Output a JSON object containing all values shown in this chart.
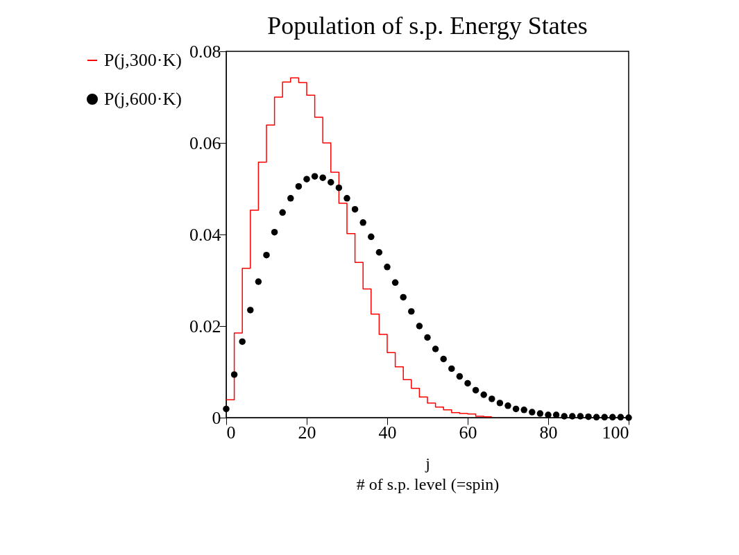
{
  "chart_data": {
    "type": "step",
    "title": "Population of s.p. Energy States",
    "xlabel": "j\n# of s.p. level (=spin)",
    "xlim": [
      0,
      100
    ],
    "xticks": [
      0,
      20,
      40,
      60,
      80,
      100
    ],
    "ylim": [
      0,
      0.08
    ],
    "yticks": [
      0,
      0.02,
      0.04,
      0.06,
      0.08
    ],
    "grid": false,
    "legend": "left",
    "series": [
      {
        "name": "P(j,300·K)",
        "color": "#ff0000",
        "x": [
          0,
          2,
          4,
          6,
          8,
          10,
          12,
          14,
          16,
          18,
          20,
          22,
          24,
          26,
          28,
          30,
          32,
          34,
          36,
          38,
          40,
          42,
          44,
          46,
          48,
          50,
          52,
          54,
          56,
          58,
          60,
          62,
          64,
          66
        ],
        "values": [
          0.0039,
          0.0185,
          0.0326,
          0.0453,
          0.0558,
          0.0639,
          0.07,
          0.0733,
          0.0742,
          0.0732,
          0.0704,
          0.0656,
          0.06,
          0.0536,
          0.0468,
          0.0402,
          0.0339,
          0.0281,
          0.0226,
          0.0182,
          0.0142,
          0.0111,
          0.0083,
          0.0064,
          0.0045,
          0.0032,
          0.0023,
          0.0017,
          0.0011,
          0.0009,
          0.0008,
          0.0003,
          0.0002,
          0.0002
        ]
      },
      {
        "name": "P(j,600·K)",
        "type": "scatter",
        "color": "#000000",
        "x": [
          0,
          2,
          4,
          6,
          8,
          10,
          12,
          14,
          16,
          18,
          20,
          22,
          24,
          26,
          28,
          30,
          32,
          34,
          36,
          38,
          40,
          42,
          44,
          46,
          48,
          50,
          52,
          54,
          56,
          58,
          60,
          62,
          64,
          66,
          68,
          70,
          72,
          74,
          76,
          78,
          80,
          82,
          84,
          86,
          88,
          90,
          92,
          94,
          96,
          98,
          100
        ],
        "values": [
          0.0019,
          0.0094,
          0.0166,
          0.0235,
          0.0297,
          0.0355,
          0.0405,
          0.0448,
          0.0479,
          0.0505,
          0.0521,
          0.0527,
          0.0524,
          0.0514,
          0.0502,
          0.0479,
          0.0455,
          0.0426,
          0.0395,
          0.0361,
          0.0329,
          0.0295,
          0.0263,
          0.0232,
          0.02,
          0.0175,
          0.015,
          0.0128,
          0.0107,
          0.009,
          0.0075,
          0.006,
          0.005,
          0.0041,
          0.0032,
          0.0026,
          0.0019,
          0.0017,
          0.0012,
          0.0009,
          0.0006,
          0.0006,
          0.0003,
          0.0003,
          0.0003,
          0.0002,
          0.0001,
          0.0001,
          0.0001,
          0.0001,
          0
        ]
      }
    ]
  }
}
